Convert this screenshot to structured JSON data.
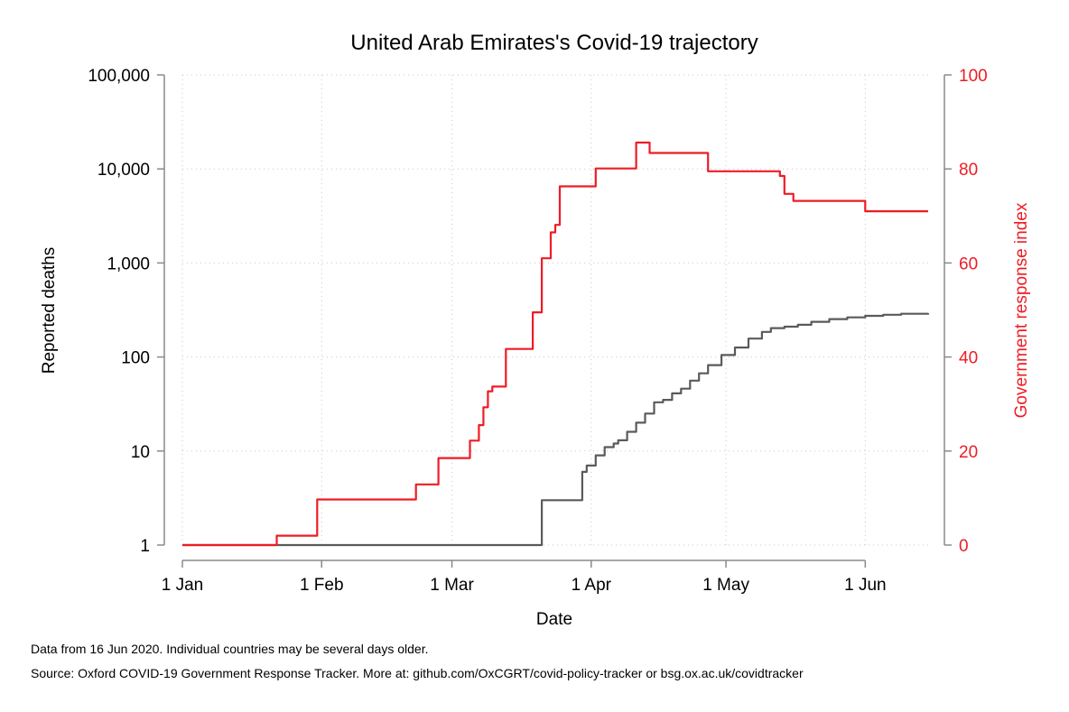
{
  "chart_data": {
    "type": "line",
    "title": "United Arab Emirates's Covid-19 trajectory",
    "xlabel": "Date",
    "ylabel_left": "Reported deaths",
    "ylabel_right": "Government response index",
    "x_ticks": [
      "1 Jan",
      "1 Feb",
      "1 Mar",
      "1 Apr",
      "1 May",
      "1 Jun"
    ],
    "x_tick_dates": [
      "2020-01-01",
      "2020-02-01",
      "2020-03-01",
      "2020-04-01",
      "2020-05-01",
      "2020-06-01"
    ],
    "xlim": [
      "2020-01-01",
      "2020-06-15"
    ],
    "y_left_scale": "log",
    "y_left_ticks": [
      1,
      10,
      100,
      1000,
      10000,
      100000
    ],
    "y_left_tick_labels": [
      "1",
      "10",
      "100",
      "1,000",
      "10,000",
      "100,000"
    ],
    "y_left_lim": [
      1,
      100000
    ],
    "y_right_ticks": [
      0,
      20,
      40,
      60,
      80,
      100
    ],
    "y_right_tick_labels": [
      "0",
      "20",
      "40",
      "60",
      "80",
      "100"
    ],
    "y_right_lim": [
      0,
      100
    ],
    "grid": true,
    "colors": {
      "deaths": "#5a5a5a",
      "response": "#ee1c25",
      "axis_right": "#ee1c25"
    },
    "series": [
      {
        "axis": "left",
        "style": "step",
        "points": [
          [
            "2020-01-01",
            1
          ],
          [
            "2020-03-20",
            1
          ],
          [
            "2020-03-21",
            3
          ],
          [
            "2020-03-29",
            3
          ],
          [
            "2020-03-30",
            6
          ],
          [
            "2020-03-31",
            7
          ],
          [
            "2020-04-02",
            9
          ],
          [
            "2020-04-04",
            11
          ],
          [
            "2020-04-06",
            12
          ],
          [
            "2020-04-07",
            13
          ],
          [
            "2020-04-09",
            16
          ],
          [
            "2020-04-11",
            20
          ],
          [
            "2020-04-13",
            25
          ],
          [
            "2020-04-15",
            33
          ],
          [
            "2020-04-17",
            35
          ],
          [
            "2020-04-19",
            41
          ],
          [
            "2020-04-21",
            46
          ],
          [
            "2020-04-23",
            56
          ],
          [
            "2020-04-25",
            67
          ],
          [
            "2020-04-27",
            82
          ],
          [
            "2020-04-30",
            105
          ],
          [
            "2020-05-03",
            126
          ],
          [
            "2020-05-06",
            157
          ],
          [
            "2020-05-09",
            185
          ],
          [
            "2020-05-11",
            203
          ],
          [
            "2020-05-14",
            210
          ],
          [
            "2020-05-17",
            220
          ],
          [
            "2020-05-20",
            237
          ],
          [
            "2020-05-24",
            253
          ],
          [
            "2020-05-28",
            264
          ],
          [
            "2020-06-01",
            274
          ],
          [
            "2020-06-05",
            281
          ],
          [
            "2020-06-09",
            288
          ],
          [
            "2020-06-15",
            293
          ]
        ]
      },
      {
        "axis": "right",
        "style": "step",
        "points": [
          [
            "2020-01-01",
            0
          ],
          [
            "2020-01-22",
            2
          ],
          [
            "2020-01-31",
            9.7
          ],
          [
            "2020-02-22",
            12.9
          ],
          [
            "2020-02-27",
            18.5
          ],
          [
            "2020-03-05",
            22.2
          ],
          [
            "2020-03-06",
            22.2
          ],
          [
            "2020-03-07",
            25.5
          ],
          [
            "2020-03-08",
            29.3
          ],
          [
            "2020-03-09",
            32.7
          ],
          [
            "2020-03-10",
            33.7
          ],
          [
            "2020-03-13",
            41.7
          ],
          [
            "2020-03-19",
            49.5
          ],
          [
            "2020-03-21",
            61.0
          ],
          [
            "2020-03-23",
            66.5
          ],
          [
            "2020-03-24",
            68.1
          ],
          [
            "2020-03-25",
            76.3
          ],
          [
            "2020-04-02",
            80.1
          ],
          [
            "2020-04-11",
            85.6
          ],
          [
            "2020-04-14",
            83.4
          ],
          [
            "2020-04-27",
            79.5
          ],
          [
            "2020-05-13",
            78.5
          ],
          [
            "2020-05-14",
            74.7
          ],
          [
            "2020-05-16",
            73.2
          ],
          [
            "2020-06-01",
            71.0
          ],
          [
            "2020-06-15",
            71.0
          ]
        ]
      }
    ]
  },
  "footnotes": {
    "line1": "Data from 16 Jun 2020. Individual countries may be several days older.",
    "line2": "Source: Oxford COVID-19 Government Response Tracker. More at: github.com/OxCGRT/covid-policy-tracker or bsg.ox.ac.uk/covidtracker"
  }
}
